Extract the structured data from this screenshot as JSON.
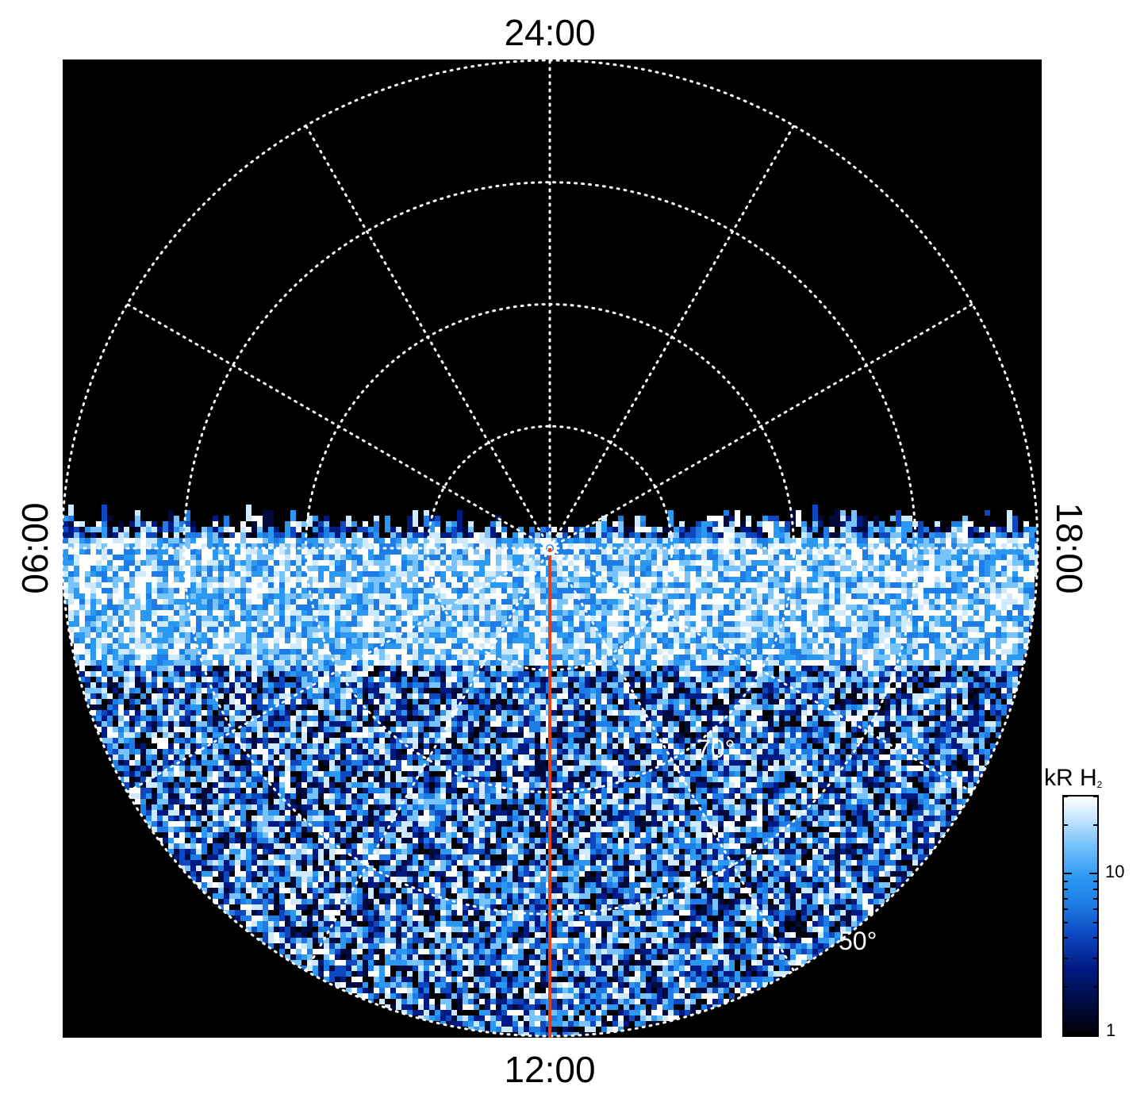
{
  "figure": {
    "local_time_labels": {
      "top": "24:00",
      "bottom": "12:00",
      "left": "06:00",
      "right": "18:00"
    },
    "latitude_labels": {
      "inner": "70°",
      "outer": "50°"
    },
    "colorbar": {
      "title": "kR H",
      "title_subscript": "2",
      "tick_labels": [
        "10",
        "1"
      ],
      "scale": "log",
      "colors": [
        "#000000",
        "#001a84",
        "#1e7ce6",
        "#78c3fb",
        "#ffffff"
      ]
    },
    "colors": {
      "background": "#000000",
      "grid": "#ffffff",
      "meridian_line": "#e0401a"
    }
  },
  "chart_data": {
    "type": "heatmap",
    "projection": "polar (north-up local time dial)",
    "local_time_hours": [
      0,
      6,
      12,
      18
    ],
    "local_time_grid_step_hours": 2,
    "latitude_circles_deg": [
      90,
      80,
      70,
      60,
      50
    ],
    "annotated_latitudes_deg": [
      70,
      50
    ],
    "color_scale": {
      "label": "kR H2",
      "type": "log",
      "ticks": [
        1,
        10
      ],
      "range": [
        1,
        30
      ]
    },
    "observed_region": "dayside hemisphere from 06:00 through 12:00 to 18:00 local time, extending to about 50° latitude",
    "highlighted_meridian_local_time": "12:00"
  }
}
